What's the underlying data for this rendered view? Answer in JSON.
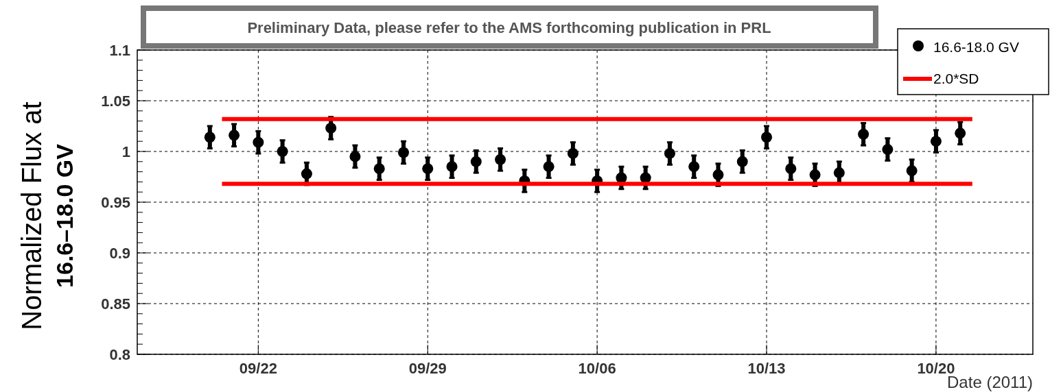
{
  "chart_data": {
    "type": "scatter",
    "xlabel": "Date (2011)",
    "ylabel": "Normalized Flux at\n16.6–18.0 GV",
    "annotations": [
      "Preliminary Data, please refer to the AMS forthcoming publication in PRL"
    ],
    "xlim": [
      "2011-09-17",
      "2011-10-24"
    ],
    "xticks": [
      {
        "value": "2011-09-22",
        "label": "09/22"
      },
      {
        "value": "2011-09-29",
        "label": "09/29"
      },
      {
        "value": "2011-10-06",
        "label": "10/06"
      },
      {
        "value": "2011-10-13",
        "label": "10/13"
      },
      {
        "value": "2011-10-20",
        "label": "10/20"
      }
    ],
    "ylim": [
      0.8,
      1.1
    ],
    "yticks": [
      {
        "value": 0.8,
        "label": "0.8"
      },
      {
        "value": 0.85,
        "label": "0.85"
      },
      {
        "value": 0.9,
        "label": "0.9"
      },
      {
        "value": 0.95,
        "label": "0.95"
      },
      {
        "value": 1,
        "label": "1"
      },
      {
        "value": 1.05,
        "label": "1.05"
      },
      {
        "value": 1.1,
        "label": "1.1"
      }
    ],
    "grid": true,
    "legend": "top right",
    "marker": "circle",
    "series": [
      {
        "name": "16.6-18.0 GV",
        "color": "#000000",
        "x": [
          "2011-09-20",
          "2011-09-21",
          "2011-09-22",
          "2011-09-23",
          "2011-09-24",
          "2011-09-25",
          "2011-09-26",
          "2011-09-27",
          "2011-09-28",
          "2011-09-29",
          "2011-09-30",
          "2011-10-01",
          "2011-10-02",
          "2011-10-03",
          "2011-10-04",
          "2011-10-05",
          "2011-10-06",
          "2011-10-07",
          "2011-10-08",
          "2011-10-09",
          "2011-10-10",
          "2011-10-11",
          "2011-10-12",
          "2011-10-13",
          "2011-10-14",
          "2011-10-15",
          "2011-10-16",
          "2011-10-17",
          "2011-10-18",
          "2011-10-19",
          "2011-10-20",
          "2011-10-21"
        ],
        "values": [
          1.014,
          1.016,
          1.009,
          1.0,
          0.978,
          1.023,
          0.995,
          0.983,
          0.999,
          0.983,
          0.985,
          0.99,
          0.992,
          0.971,
          0.985,
          0.998,
          0.971,
          0.974,
          0.974,
          0.998,
          0.985,
          0.977,
          0.99,
          1.014,
          0.983,
          0.977,
          0.979,
          1.017,
          1.002,
          0.981,
          1.01,
          1.018
        ],
        "errors": [
          0.011,
          0.011,
          0.011,
          0.011,
          0.011,
          0.011,
          0.011,
          0.011,
          0.011,
          0.011,
          0.011,
          0.011,
          0.011,
          0.011,
          0.011,
          0.011,
          0.011,
          0.011,
          0.011,
          0.011,
          0.011,
          0.011,
          0.011,
          0.011,
          0.011,
          0.011,
          0.011,
          0.011,
          0.011,
          0.011,
          0.011,
          0.011
        ]
      },
      {
        "name": "2.0*SD",
        "type": "line",
        "marker": "none",
        "color": "#ff0000",
        "x": [
          "2011-09-20T12:00",
          "2011-10-21T12:00"
        ],
        "values": [
          1.032,
          1.032
        ]
      },
      {
        "type": "line",
        "marker": "none",
        "color": "#ff0000",
        "x": [
          "2011-09-20T12:00",
          "2011-10-21T12:00"
        ],
        "values": [
          0.968,
          0.968
        ]
      }
    ]
  }
}
